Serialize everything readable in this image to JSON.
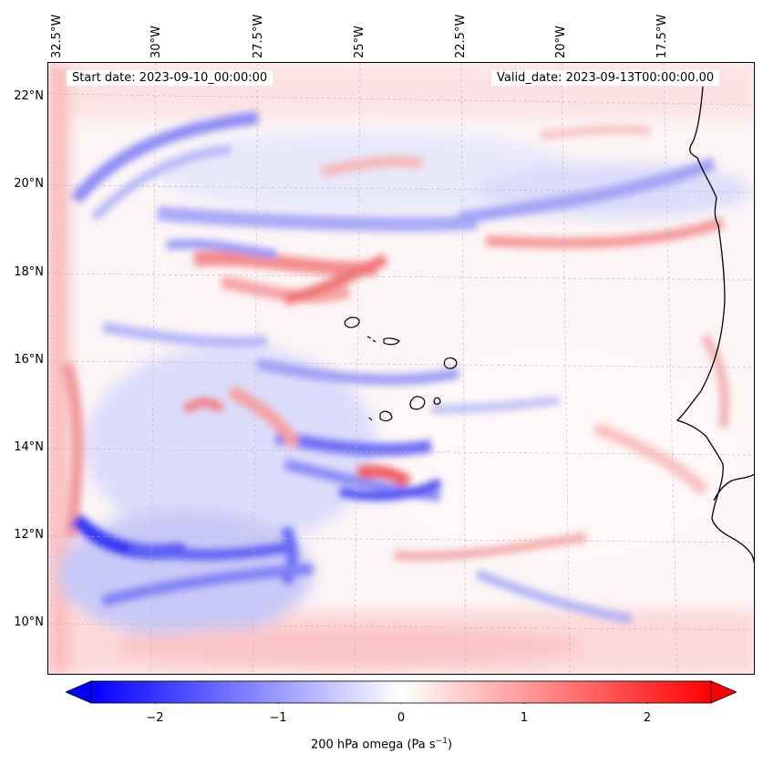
{
  "map": {
    "start_date": "Start date: 2023-09-10_00:00:00",
    "valid_date": "Valid_date: 2023-09-13T00:00:00.00",
    "lon_labels": [
      "32.5°W",
      "30°W",
      "27.5°W",
      "25°W",
      "22.5°W",
      "20°W",
      "17.5°W"
    ],
    "lat_labels": [
      "22°N",
      "20°N",
      "18°N",
      "16°N",
      "14°N",
      "12°N",
      "10°N"
    ],
    "field": "200 hPa omega",
    "colormap": "bwr",
    "colors": {
      "negative": "#0000ff",
      "zero": "#ffffff",
      "positive": "#ff0000",
      "coastline": "#000000",
      "grid": "#b0b0c0"
    }
  },
  "colorbar": {
    "range": [
      -2.6,
      2.6
    ],
    "ticks": [
      "−2",
      "−1",
      "0",
      "1",
      "2"
    ],
    "label_main": "200 hPa omega (Pa s",
    "label_sup": "−1",
    "label_end": ")",
    "extend": "both"
  }
}
